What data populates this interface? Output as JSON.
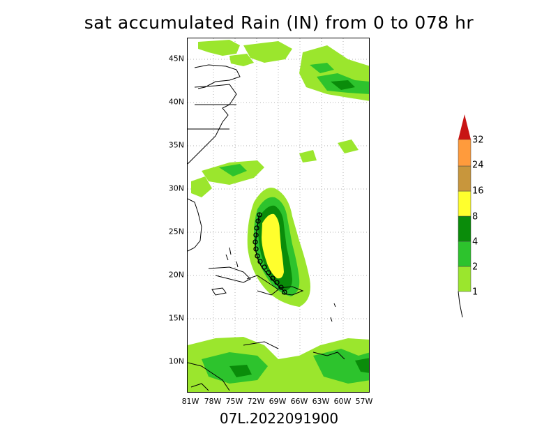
{
  "title": "sat accumulated Rain (IN) from 0 to 078 hr",
  "footer": "07L.2022091900",
  "map": {
    "y_axis_labels": [
      "45N",
      "40N",
      "35N",
      "30N",
      "25N",
      "20N",
      "15N",
      "10N"
    ],
    "x_axis_labels": [
      "81W",
      "78W",
      "75W",
      "72W",
      "69W",
      "66W",
      "63W",
      "60W",
      "57W"
    ],
    "lat_range": [
      6.5,
      47.5
    ],
    "lon_range": [
      -81,
      -56
    ]
  },
  "legend": {
    "levels": [
      {
        "label": "1",
        "color": "#9be62d"
      },
      {
        "label": "2",
        "color": "#2dc32d"
      },
      {
        "label": "4",
        "color": "#0a8c0a"
      },
      {
        "label": "8",
        "color": "#ffff2d"
      },
      {
        "label": "16",
        "color": "#c8963c"
      },
      {
        "label": "24",
        "color": "#ff9b3c"
      },
      {
        "label": "32",
        "color": "#c81414"
      }
    ]
  }
}
